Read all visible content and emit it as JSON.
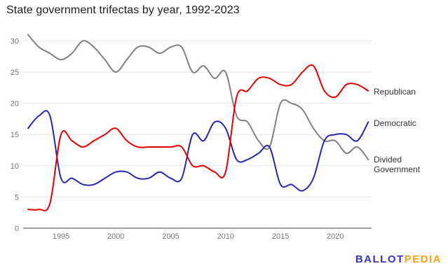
{
  "chart_data": {
    "type": "line",
    "title": "State government trifectas by year, 1992-2023",
    "x": [
      1992,
      1993,
      1994,
      1995,
      1996,
      1997,
      1998,
      1999,
      2000,
      2001,
      2002,
      2003,
      2004,
      2005,
      2006,
      2007,
      2008,
      2009,
      2010,
      2011,
      2012,
      2013,
      2014,
      2015,
      2016,
      2017,
      2018,
      2019,
      2020,
      2021,
      2022,
      2023
    ],
    "series": [
      {
        "name": "Republican",
        "color": "#e60000",
        "values": [
          3,
          3,
          4,
          15,
          14,
          13,
          14,
          15,
          16,
          14,
          13,
          13,
          13,
          13,
          13,
          10,
          10,
          9,
          9,
          21,
          22,
          24,
          24,
          23,
          23,
          25,
          26,
          22,
          21,
          23,
          23,
          22
        ]
      },
      {
        "name": "Democratic",
        "color": "#2727b0",
        "values": [
          16,
          18,
          18,
          8,
          8,
          7,
          7,
          8,
          9,
          9,
          8,
          8,
          9,
          8,
          8,
          15,
          14,
          17,
          16,
          11,
          11,
          12,
          13,
          7,
          7,
          6,
          8,
          14,
          15,
          15,
          14,
          17
        ]
      },
      {
        "name": "Divided Government",
        "color": "#818181",
        "values": [
          31,
          29,
          28,
          27,
          28,
          30,
          29,
          27,
          25,
          27,
          29,
          29,
          28,
          29,
          29,
          25,
          26,
          24,
          25,
          18,
          17,
          14,
          13,
          20,
          20,
          19,
          16,
          14,
          14,
          12,
          13,
          11
        ]
      }
    ],
    "xticks": [
      1995,
      2000,
      2005,
      2010,
      2015,
      2020
    ],
    "yticks": [
      0,
      5,
      10,
      15,
      20,
      25,
      30
    ],
    "xlim": [
      1992,
      2023
    ],
    "ylim": [
      0,
      30
    ],
    "xlabel": "",
    "ylabel": "",
    "grid": "horizontal",
    "curve": "smooth",
    "legend_position": "right-end-of-line"
  },
  "axis": {
    "tick_color": "#757575",
    "grid_color": "#e6e6e6",
    "zero_line_color": "#424242"
  },
  "branding": {
    "part1": "BALLOT",
    "part2": "PEDIA",
    "part1_color": "#3333cc",
    "part2_color": "#f9a11b"
  }
}
